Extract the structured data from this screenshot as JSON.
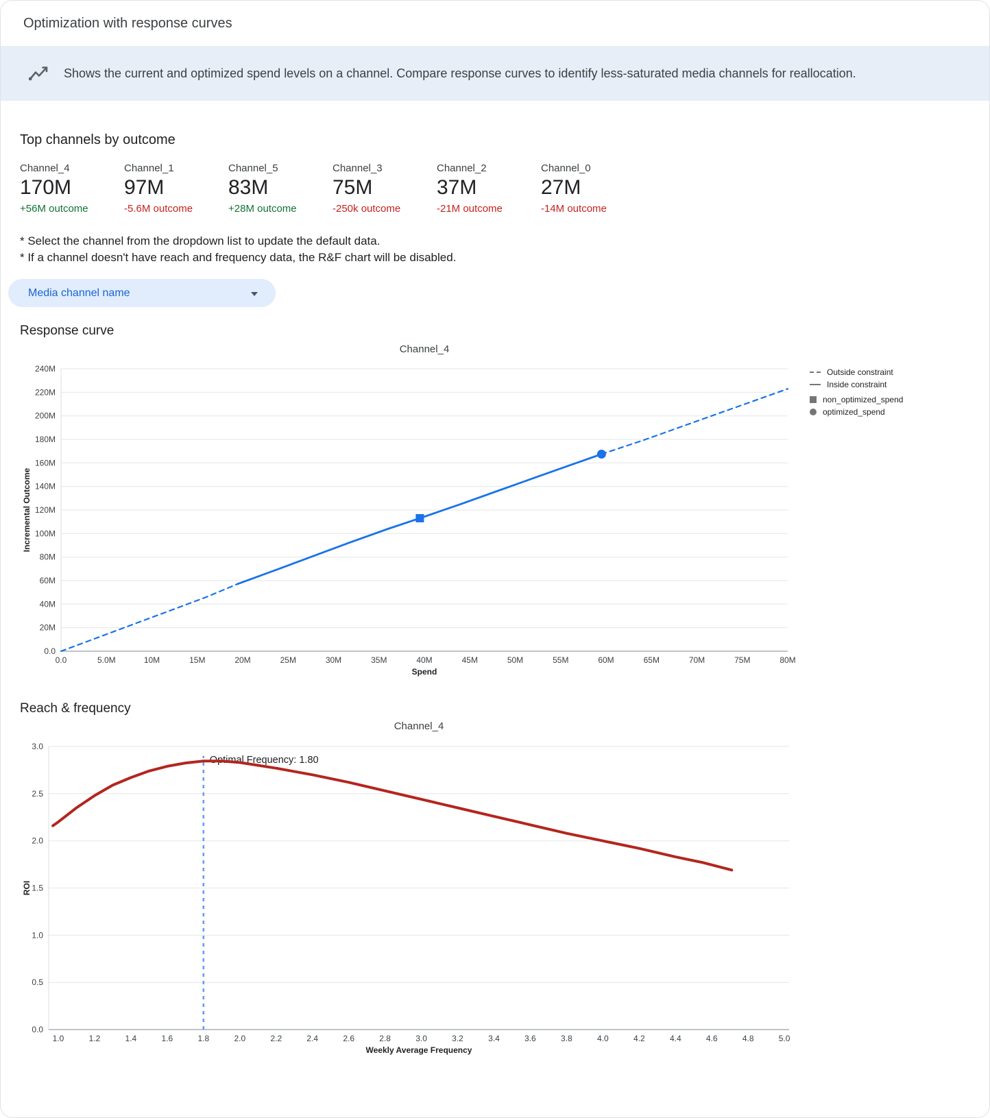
{
  "colors": {
    "positive": "#137333",
    "negative": "#c5221f",
    "dropdown_bg": "#e1ecfc",
    "dropdown_text": "#1967d2",
    "banner_bg": "#e8eef8",
    "accent_blue": "#1a73e8",
    "curve_red": "#b3261e"
  },
  "header": {
    "title": "Optimization with response curves"
  },
  "banner": {
    "text": "Shows the current and optimized spend levels on a channel. Compare response curves to identify less-saturated media channels for reallocation."
  },
  "top_channels": {
    "heading": "Top channels by outcome",
    "items": [
      {
        "name": "Channel_4",
        "value": "170M",
        "outcome": "+56M outcome",
        "direction": "positive"
      },
      {
        "name": "Channel_1",
        "value": "97M",
        "outcome": "-5.6M outcome",
        "direction": "negative"
      },
      {
        "name": "Channel_5",
        "value": "83M",
        "outcome": "+28M outcome",
        "direction": "positive"
      },
      {
        "name": "Channel_3",
        "value": "75M",
        "outcome": "-250k outcome",
        "direction": "negative"
      },
      {
        "name": "Channel_2",
        "value": "37M",
        "outcome": "-21M outcome",
        "direction": "negative"
      },
      {
        "name": "Channel_0",
        "value": "27M",
        "outcome": "-14M outcome",
        "direction": "negative"
      }
    ]
  },
  "notes": {
    "line1": "* Select the channel from the dropdown list to update the default data.",
    "line2": "* If a channel doesn't have reach and frequency data, the R&F chart will be disabled."
  },
  "dropdown": {
    "label": "Media channel name"
  },
  "sections": {
    "response_curve": "Response curve",
    "reach_frequency": "Reach & frequency"
  },
  "chart_data": [
    {
      "type": "line",
      "title": "Channel_4",
      "xlabel": "Spend",
      "ylabel": "Incremental Outcome",
      "x_unit": "M",
      "y_unit": "M",
      "xlim": [
        0,
        80
      ],
      "ylim": [
        0,
        240
      ],
      "x_ticks": [
        {
          "v": 0,
          "label": "0.0"
        },
        {
          "v": 5,
          "label": "5.0M"
        },
        {
          "v": 10,
          "label": "10M"
        },
        {
          "v": 15,
          "label": "15M"
        },
        {
          "v": 20,
          "label": "20M"
        },
        {
          "v": 25,
          "label": "25M"
        },
        {
          "v": 30,
          "label": "30M"
        },
        {
          "v": 35,
          "label": "35M"
        },
        {
          "v": 40,
          "label": "40M"
        },
        {
          "v": 45,
          "label": "45M"
        },
        {
          "v": 50,
          "label": "50M"
        },
        {
          "v": 55,
          "label": "55M"
        },
        {
          "v": 60,
          "label": "60M"
        },
        {
          "v": 65,
          "label": "65M"
        },
        {
          "v": 70,
          "label": "70M"
        },
        {
          "v": 75,
          "label": "75M"
        },
        {
          "v": 80,
          "label": "80M"
        }
      ],
      "y_ticks": [
        {
          "v": 0,
          "label": "0.0"
        },
        {
          "v": 20,
          "label": "20M"
        },
        {
          "v": 40,
          "label": "40M"
        },
        {
          "v": 60,
          "label": "60M"
        },
        {
          "v": 80,
          "label": "80M"
        },
        {
          "v": 100,
          "label": "100M"
        },
        {
          "v": 120,
          "label": "120M"
        },
        {
          "v": 140,
          "label": "140M"
        },
        {
          "v": 160,
          "label": "160M"
        },
        {
          "v": 180,
          "label": "180M"
        },
        {
          "v": 200,
          "label": "200M"
        },
        {
          "v": 220,
          "label": "220M"
        },
        {
          "v": 240,
          "label": "240M"
        }
      ],
      "series": [
        {
          "name": "outside_constraint_low",
          "style": "dashed",
          "color": "#1a73e8",
          "width": 2.2,
          "points": [
            [
              0,
              0
            ],
            [
              4,
              11.5
            ],
            [
              8,
              23
            ],
            [
              12,
              34.5
            ],
            [
              16,
              46
            ],
            [
              19.4,
              57
            ]
          ]
        },
        {
          "name": "inside_constraint",
          "style": "solid",
          "color": "#1a73e8",
          "width": 2.8,
          "points": [
            [
              19.4,
              57
            ],
            [
              24,
              70
            ],
            [
              28,
              81.5
            ],
            [
              32,
              93
            ],
            [
              36,
              104
            ],
            [
              39.5,
              113
            ],
            [
              44,
              125
            ],
            [
              48,
              136
            ],
            [
              52,
              147
            ],
            [
              56,
              158
            ],
            [
              59.5,
              167.5
            ]
          ]
        },
        {
          "name": "outside_constraint_high",
          "style": "dashed",
          "color": "#1a73e8",
          "width": 2.2,
          "points": [
            [
              59.5,
              167.5
            ],
            [
              64,
              179
            ],
            [
              68,
              190
            ],
            [
              72,
              201
            ],
            [
              76,
              212
            ],
            [
              80,
              223
            ]
          ]
        }
      ],
      "markers": [
        {
          "name": "non_optimized_spend",
          "shape": "square",
          "x": 39.5,
          "y": 113,
          "color": "#1a73e8"
        },
        {
          "name": "optimized_spend",
          "shape": "circle",
          "x": 59.5,
          "y": 167.5,
          "color": "#1a73e8"
        }
      ],
      "legend": [
        {
          "label": "Outside constraint",
          "glyph": "dashed-line"
        },
        {
          "label": "Inside constraint",
          "glyph": "solid-line"
        },
        {
          "label": "non_optimized_spend",
          "glyph": "square"
        },
        {
          "label": "optimized_spend",
          "glyph": "circle"
        }
      ]
    },
    {
      "type": "line",
      "title": "Channel_4",
      "xlabel": "Weekly Average Frequency",
      "ylabel": "ROI",
      "xlim": [
        0.947,
        5.026
      ],
      "ylim": [
        0,
        3.0
      ],
      "x_ticks": [
        {
          "v": 1.0,
          "label": "1.0"
        },
        {
          "v": 1.2,
          "label": "1.2"
        },
        {
          "v": 1.4,
          "label": "1.4"
        },
        {
          "v": 1.6,
          "label": "1.6"
        },
        {
          "v": 1.8,
          "label": "1.8"
        },
        {
          "v": 2.0,
          "label": "2.0"
        },
        {
          "v": 2.2,
          "label": "2.2"
        },
        {
          "v": 2.4,
          "label": "2.4"
        },
        {
          "v": 2.6,
          "label": "2.6"
        },
        {
          "v": 2.8,
          "label": "2.8"
        },
        {
          "v": 3.0,
          "label": "3.0"
        },
        {
          "v": 3.2,
          "label": "3.2"
        },
        {
          "v": 3.4,
          "label": "3.4"
        },
        {
          "v": 3.6,
          "label": "3.6"
        },
        {
          "v": 3.8,
          "label": "3.8"
        },
        {
          "v": 4.0,
          "label": "4.0"
        },
        {
          "v": 4.2,
          "label": "4.2"
        },
        {
          "v": 4.4,
          "label": "4.4"
        },
        {
          "v": 4.6,
          "label": "4.6"
        },
        {
          "v": 4.8,
          "label": "4.8"
        },
        {
          "v": 5.0,
          "label": "5.0"
        }
      ],
      "y_ticks": [
        {
          "v": 0,
          "label": "0.0"
        },
        {
          "v": 0.5,
          "label": "0.5"
        },
        {
          "v": 1.0,
          "label": "1.0"
        },
        {
          "v": 1.5,
          "label": "1.5"
        },
        {
          "v": 2.0,
          "label": "2.0"
        },
        {
          "v": 2.5,
          "label": "2.5"
        },
        {
          "v": 3.0,
          "label": "3.0"
        }
      ],
      "series": [
        {
          "name": "roi_curve",
          "style": "solid",
          "color": "#b3261e",
          "width": 4,
          "points": [
            [
              0.97,
              2.16
            ],
            [
              1.0,
              2.2
            ],
            [
              1.1,
              2.35
            ],
            [
              1.2,
              2.48
            ],
            [
              1.3,
              2.59
            ],
            [
              1.4,
              2.67
            ],
            [
              1.5,
              2.74
            ],
            [
              1.6,
              2.79
            ],
            [
              1.7,
              2.825
            ],
            [
              1.8,
              2.845
            ],
            [
              1.9,
              2.845
            ],
            [
              2.0,
              2.83
            ],
            [
              2.1,
              2.8
            ],
            [
              2.2,
              2.77
            ],
            [
              2.4,
              2.7
            ],
            [
              2.6,
              2.62
            ],
            [
              2.8,
              2.53
            ],
            [
              3.0,
              2.44
            ],
            [
              3.2,
              2.35
            ],
            [
              3.4,
              2.26
            ],
            [
              3.6,
              2.17
            ],
            [
              3.8,
              2.08
            ],
            [
              4.0,
              2.0
            ],
            [
              4.2,
              1.92
            ],
            [
              4.4,
              1.83
            ],
            [
              4.55,
              1.77
            ],
            [
              4.71,
              1.69
            ]
          ]
        }
      ],
      "optimal_frequency": {
        "x": 1.8,
        "value": "1.80",
        "label": "Optimal Frequency: 1.80",
        "line_color": "#669df6"
      }
    }
  ]
}
